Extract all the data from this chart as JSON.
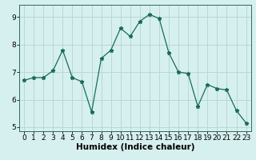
{
  "x": [
    0,
    1,
    2,
    3,
    4,
    5,
    6,
    7,
    8,
    9,
    10,
    11,
    12,
    13,
    14,
    15,
    16,
    17,
    18,
    19,
    20,
    21,
    22,
    23
  ],
  "y": [
    6.7,
    6.8,
    6.8,
    7.05,
    7.8,
    6.8,
    6.65,
    5.55,
    7.5,
    7.8,
    8.6,
    8.3,
    8.85,
    9.1,
    8.95,
    7.7,
    7.0,
    6.95,
    5.75,
    6.55,
    6.4,
    6.35,
    5.6,
    5.15
  ],
  "line_color": "#1a6b5a",
  "marker": "*",
  "marker_size": 3.5,
  "bg_color": "#d6f0ef",
  "grid_color": "#b8d8d5",
  "xlabel": "Humidex (Indice chaleur)",
  "xlim": [
    -0.5,
    23.5
  ],
  "ylim": [
    4.85,
    9.45
  ],
  "yticks": [
    5,
    6,
    7,
    8,
    9
  ],
  "xticks": [
    0,
    1,
    2,
    3,
    4,
    5,
    6,
    7,
    8,
    9,
    10,
    11,
    12,
    13,
    14,
    15,
    16,
    17,
    18,
    19,
    20,
    21,
    22,
    23
  ],
  "xlabel_fontsize": 7.5,
  "tick_fontsize": 6.5
}
